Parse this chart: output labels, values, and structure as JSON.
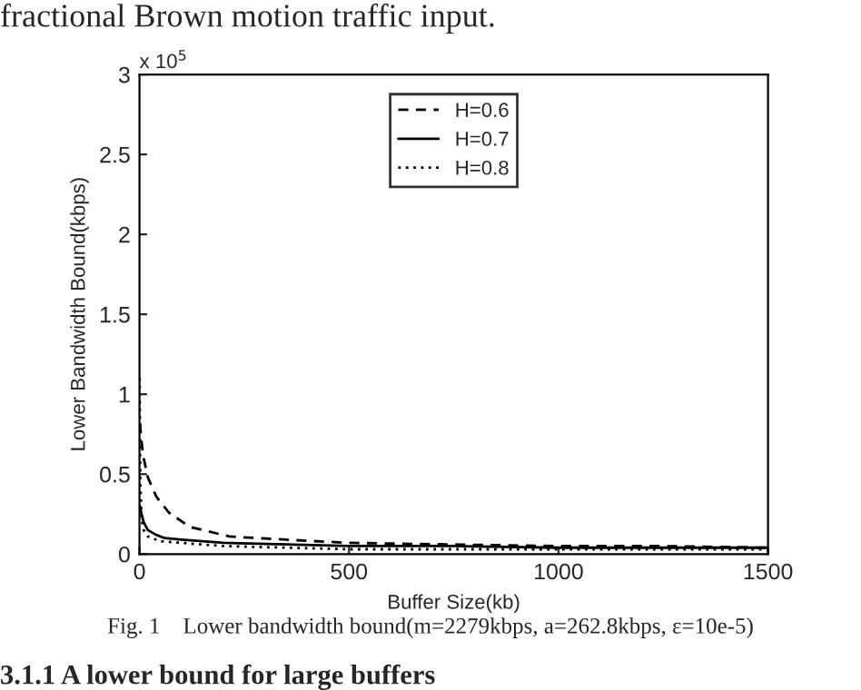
{
  "chart_data": {
    "type": "line",
    "xlabel": "Buffer Size(kb)",
    "ylabel": "Lower Bandwidth Bound(kbps)",
    "annotations": [
      "fractional Brown motion traffic input.",
      "x 10$^{5}$",
      "Fig. 1    Lower bandwidth bound(m=2279kbps, a=262.8kbps, ε=10e-5)",
      "3.1.1 A lower bound for large buffers"
    ],
    "series": [
      {
        "name": "H=0.6",
        "color": "#000000",
        "line_style": "dashed",
        "x": [
          1,
          5,
          10,
          20,
          40,
          70,
          120,
          215,
          350,
          500,
          750,
          1000,
          1250,
          1500
        ],
        "values": [
          0.82,
          0.7,
          0.6,
          0.48,
          0.36,
          0.26,
          0.17,
          0.11,
          0.09,
          0.07,
          0.06,
          0.05,
          0.05,
          0.04
        ]
      },
      {
        "name": "H=0.7",
        "color": "#000000",
        "line_style": "solid",
        "x": [
          1,
          5,
          10,
          20,
          40,
          60,
          100,
          200,
          350,
          500,
          750,
          1000,
          1250,
          1500
        ],
        "values": [
          0.3,
          0.25,
          0.2,
          0.15,
          0.12,
          0.1,
          0.09,
          0.07,
          0.06,
          0.05,
          0.05,
          0.04,
          0.04,
          0.04
        ]
      },
      {
        "name": "H=0.8",
        "color": "#000000",
        "line_style": "dotted",
        "x": [
          0.5,
          1,
          2,
          5,
          10,
          20,
          50,
          100,
          200,
          500,
          1000,
          1500
        ],
        "values": [
          1.1,
          0.8,
          0.45,
          0.22,
          0.15,
          0.11,
          0.08,
          0.07,
          0.05,
          0.03,
          0.03,
          0.03
        ]
      }
    ],
    "xlim": [
      0,
      1500
    ],
    "xticks": [
      0,
      500,
      1000,
      1500
    ],
    "ylim": [
      0,
      3
    ],
    "yticks": [
      0,
      0.5,
      1,
      1.5,
      2,
      2.5,
      3
    ],
    "grid": false,
    "legend": "top"
  }
}
